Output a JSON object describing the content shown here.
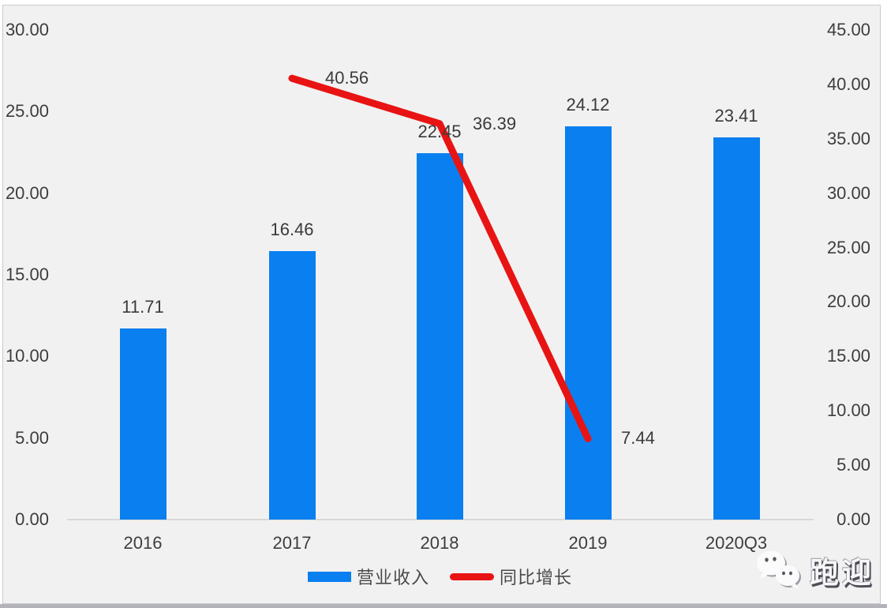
{
  "chart_data": {
    "type": "bar",
    "subtype": "combo-bar-line-dual-axis",
    "categories": [
      "2016",
      "2017",
      "2018",
      "2019",
      "2020Q3"
    ],
    "series": [
      {
        "name": "营业收入",
        "type": "bar",
        "axis": "left",
        "color": "#0a7ff0",
        "values": [
          11.71,
          16.46,
          22.45,
          24.12,
          23.41
        ],
        "labels": [
          "11.71",
          "16.46",
          "22.45",
          "24.12",
          "23.41"
        ]
      },
      {
        "name": "同比增长",
        "type": "line",
        "axis": "right",
        "color": "#e81414",
        "values": [
          null,
          40.56,
          36.39,
          7.44,
          null
        ],
        "labels": [
          null,
          "40.56",
          "36.39",
          "7.44",
          null
        ]
      }
    ],
    "title": "",
    "xlabel": "",
    "ylabel": "",
    "left_axis": {
      "min": 0,
      "max": 30,
      "ticks": [
        "30.00",
        "25.00",
        "20.00",
        "15.00",
        "10.00",
        "5.00",
        "0.00"
      ],
      "tick_values": [
        30,
        25,
        20,
        15,
        10,
        5,
        0
      ]
    },
    "right_axis": {
      "min": 0,
      "max": 45,
      "ticks": [
        "45.00",
        "40.00",
        "35.00",
        "30.00",
        "25.00",
        "20.00",
        "15.00",
        "10.00",
        "5.00",
        "0.00"
      ],
      "tick_values": [
        45,
        40,
        35,
        30,
        25,
        20,
        15,
        10,
        5,
        0
      ]
    },
    "grid": false,
    "legend_position": "bottom"
  },
  "legend": [
    {
      "label": "营业收入",
      "color": "#0a7ff0",
      "shape": "rect"
    },
    {
      "label": "同比增长",
      "color": "#e81414",
      "shape": "line"
    }
  ],
  "watermark": {
    "icon": "wechat-icon",
    "text": "跑迎"
  },
  "colors": {
    "background": "#f2f1f1",
    "bar": "#0a7ff0",
    "line": "#e81414",
    "axis_text": "#3d3d3d",
    "axis_line": "#d8d8d8",
    "frame_border": "#c9c9cd",
    "bottom_strip": "#b3b3ba"
  }
}
